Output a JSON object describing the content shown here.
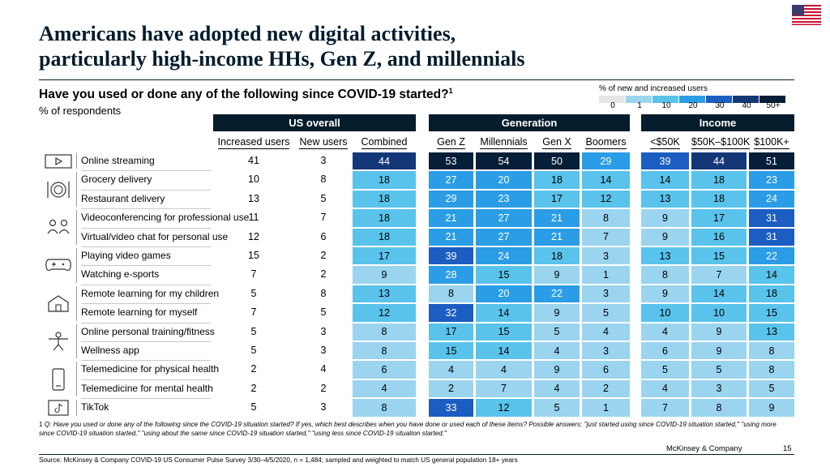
{
  "title_line1": "Americans have adopted new digital activities,",
  "title_line2": "particularly high-income HHs, Gen Z, and millennials",
  "question": "Have you used or done any of the following since COVID-19 started?",
  "question_sup": "1",
  "subtitle": "% of respondents",
  "legend": {
    "title": "% of new and increased users",
    "labels": [
      "0",
      "1",
      "10",
      "20",
      "30",
      "40",
      "50+"
    ],
    "colors": [
      "#ffffff",
      "#afe0ec",
      "#9ad4ef",
      "#59c3ec",
      "#2a9de6",
      "#1c5dc1",
      "#143777",
      "#061e37"
    ]
  },
  "chart_data": {
    "type": "table",
    "groups": [
      {
        "label": "US overall",
        "columns": [
          "Increased users",
          "New users",
          "Combined"
        ]
      },
      {
        "label": "Generation",
        "columns": [
          "Gen Z",
          "Millennials",
          "Gen X",
          "Boomers"
        ]
      },
      {
        "label": "Income",
        "columns": [
          "<$50K",
          "$50K–$100K",
          "$100K+"
        ]
      }
    ],
    "rows": [
      {
        "label": "Online streaming",
        "increased": 41,
        "new": 3,
        "combined": 44,
        "generation": [
          53,
          54,
          50,
          29
        ],
        "income": [
          39,
          44,
          51
        ]
      },
      {
        "label": "Grocery delivery",
        "increased": 10,
        "new": 8,
        "combined": 18,
        "generation": [
          27,
          20,
          18,
          14
        ],
        "income": [
          14,
          18,
          23
        ]
      },
      {
        "label": "Restaurant delivery",
        "increased": 13,
        "new": 5,
        "combined": 18,
        "generation": [
          29,
          23,
          17,
          12
        ],
        "income": [
          13,
          18,
          24
        ]
      },
      {
        "label": "Videoconferencing for professional use",
        "increased": 11,
        "new": 7,
        "combined": 18,
        "generation": [
          21,
          27,
          21,
          8
        ],
        "income": [
          9,
          17,
          31
        ]
      },
      {
        "label": "Virtual/video chat for personal use",
        "increased": 12,
        "new": 6,
        "combined": 18,
        "generation": [
          21,
          27,
          21,
          7
        ],
        "income": [
          9,
          16,
          31
        ]
      },
      {
        "label": "Playing video games",
        "increased": 15,
        "new": 2,
        "combined": 17,
        "generation": [
          39,
          24,
          18,
          3
        ],
        "income": [
          13,
          15,
          22
        ]
      },
      {
        "label": "Watching e-sports",
        "increased": 7,
        "new": 2,
        "combined": 9,
        "generation": [
          28,
          15,
          9,
          1
        ],
        "income": [
          8,
          7,
          14
        ]
      },
      {
        "label": "Remote learning for my children",
        "increased": 5,
        "new": 8,
        "combined": 13,
        "generation": [
          8,
          20,
          22,
          3
        ],
        "income": [
          9,
          14,
          18
        ]
      },
      {
        "label": "Remote learning for myself",
        "increased": 7,
        "new": 5,
        "combined": 12,
        "generation": [
          32,
          14,
          9,
          5
        ],
        "income": [
          10,
          10,
          15
        ]
      },
      {
        "label": "Online personal training/fitness",
        "increased": 5,
        "new": 3,
        "combined": 8,
        "generation": [
          17,
          15,
          5,
          4
        ],
        "income": [
          4,
          9,
          13
        ]
      },
      {
        "label": "Wellness app",
        "increased": 5,
        "new": 3,
        "combined": 8,
        "generation": [
          15,
          14,
          4,
          3
        ],
        "income": [
          6,
          9,
          8
        ]
      },
      {
        "label": "Telemedicine for physical health",
        "increased": 2,
        "new": 4,
        "combined": 6,
        "generation": [
          4,
          4,
          9,
          6
        ],
        "income": [
          5,
          5,
          8
        ]
      },
      {
        "label": "Telemedicine for mental health",
        "increased": 2,
        "new": 2,
        "combined": 4,
        "generation": [
          2,
          7,
          4,
          2
        ],
        "income": [
          4,
          3,
          5
        ]
      },
      {
        "label": "TikTok",
        "increased": 5,
        "new": 3,
        "combined": 8,
        "generation": [
          33,
          12,
          5,
          1
        ],
        "income": [
          7,
          8,
          9
        ]
      }
    ]
  },
  "icons": [
    "streaming-icon",
    "grocery-icon",
    "videoconference-icon",
    "gamepad-icon",
    "school-icon",
    "fitness-icon",
    "phone-icon",
    "tiktok-icon"
  ],
  "footnote_num": "1",
  "footnote": "Q: Have you used or done any of the following since the COVID-19 situation started? If yes, which best describes when you have done or used each of these items? Possible answers: \"just started using since COVID-19 situation started,\" \"using more since COVID-19 situation started,\" \"using about the same since COVID-19 situation started,\" \"using less since COVID-19 situation started.\"",
  "brand": "McKinsey & Company",
  "page_number": "15",
  "source": "Source: McKinsey & Company COVID-19 US Consumer Pulse Survey 3/30–4/5/2020, n = 1,484; sampled and weighted to match US general population 18+ years"
}
